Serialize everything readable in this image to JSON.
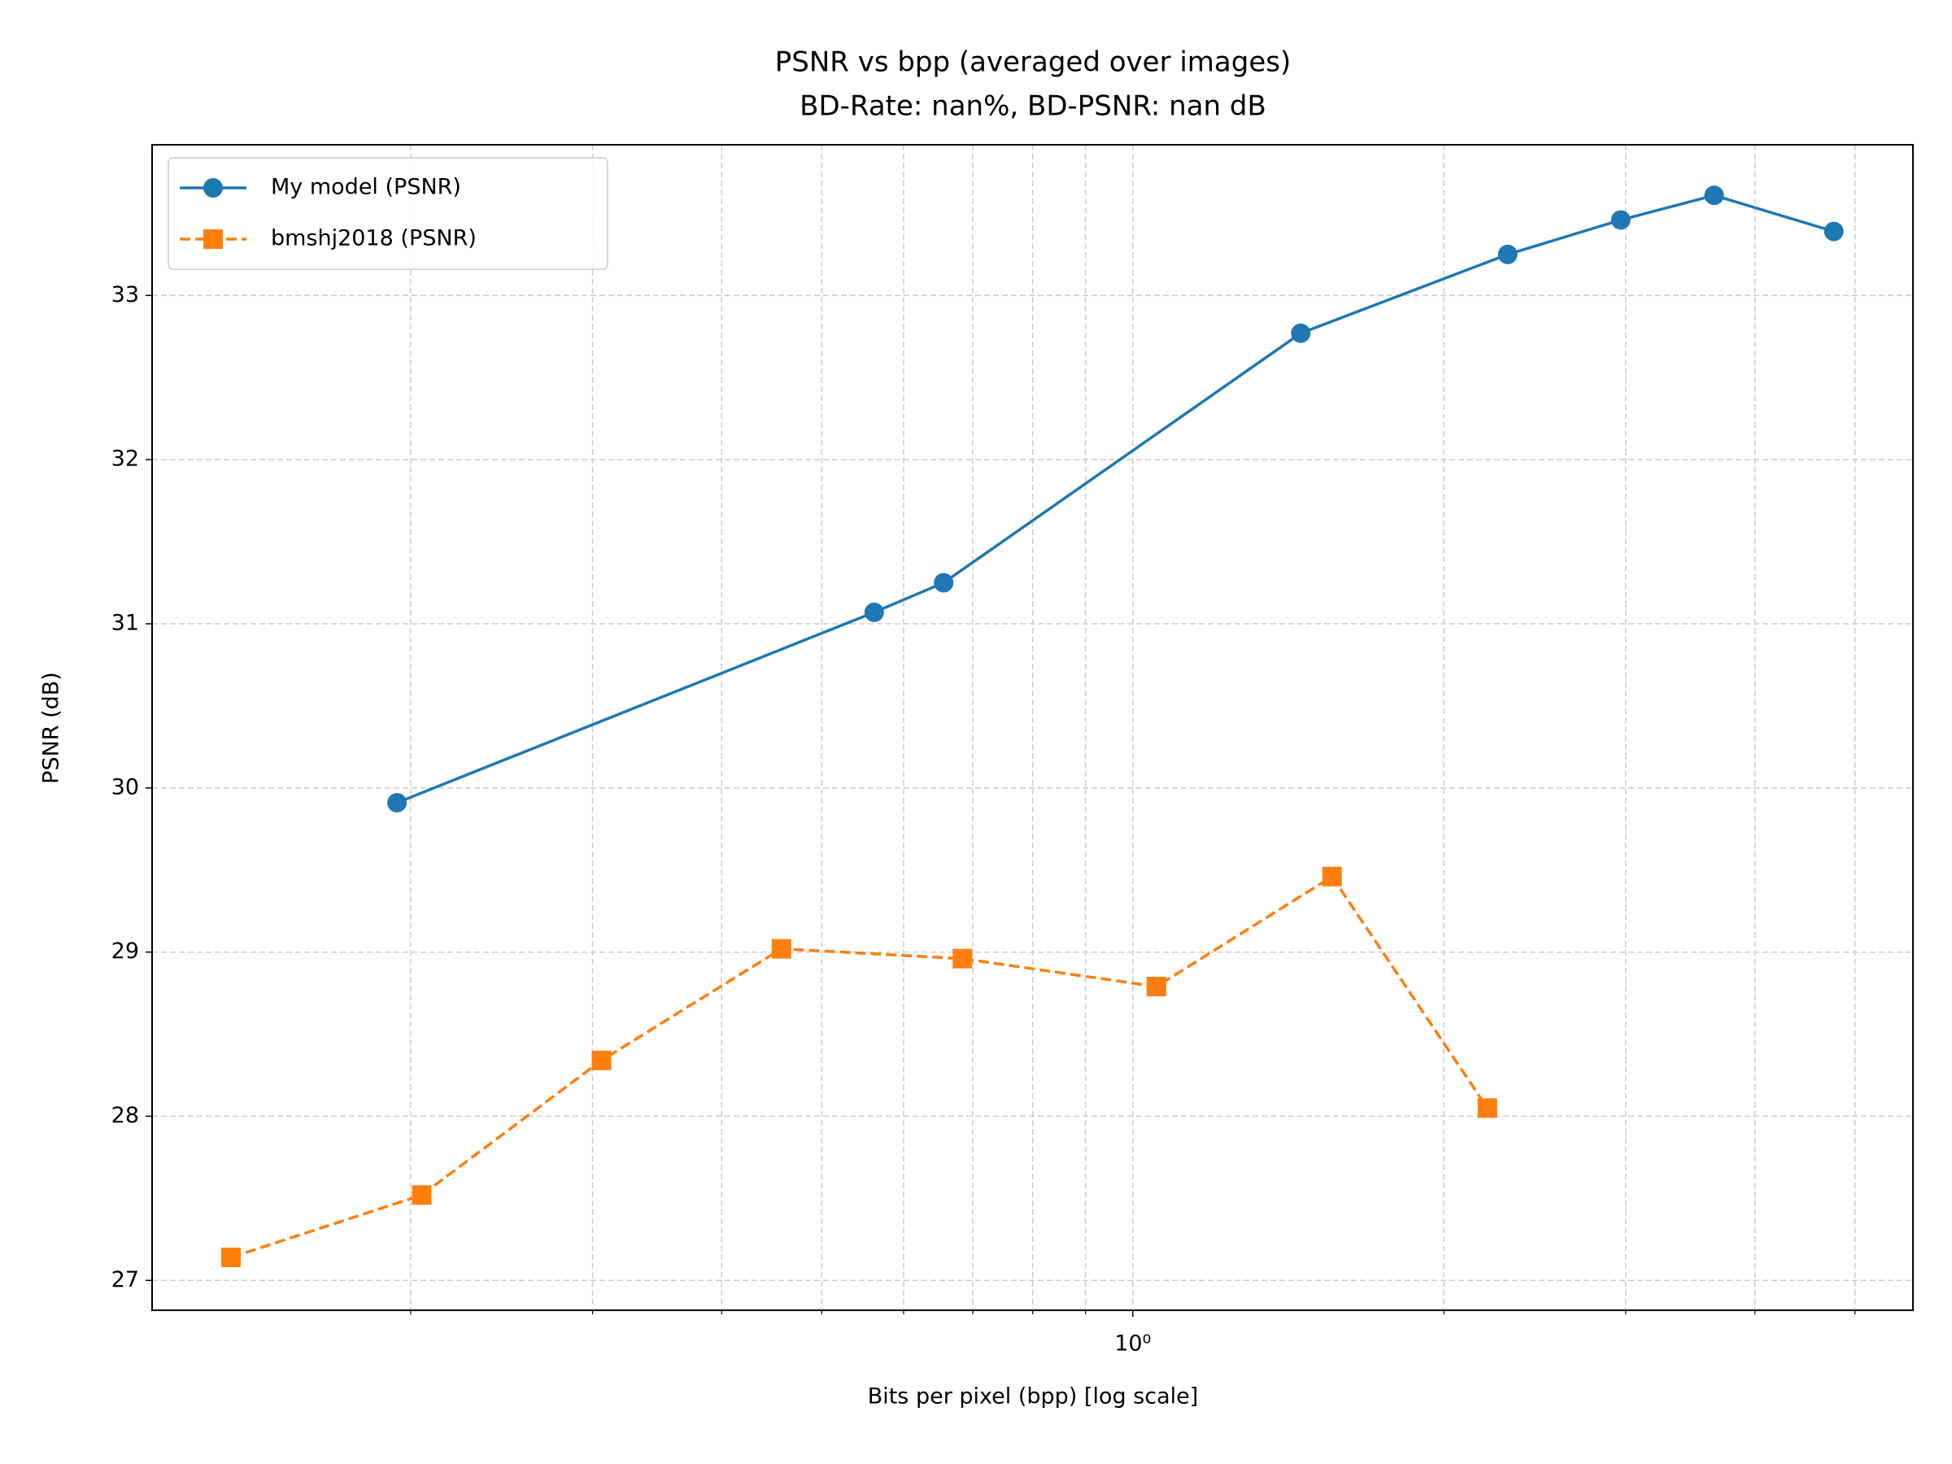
{
  "chart_data": {
    "type": "line",
    "title": "PSNR vs bpp (averaged over images)",
    "subtitle": "BD-Rate: nan%, BD-PSNR: nan dB",
    "x_label": "Bits per pixel (bpp) [log scale]",
    "y_label": "PSNR (dB)",
    "x_scale": "log",
    "grid": true,
    "legend": "upper left",
    "xlim": [
      0.1124,
      5.69
    ],
    "ylim": [
      26.818,
      33.918
    ],
    "xticks": [
      {
        "value": 1,
        "label": "10⁰"
      }
    ],
    "xminorticks": [
      0.2,
      0.3,
      0.4,
      0.5,
      0.6,
      0.7,
      0.8,
      0.9,
      2,
      3,
      4,
      5
    ],
    "yticks": [
      27,
      28,
      29,
      30,
      31,
      32,
      33
    ],
    "series": [
      {
        "name": "My model (PSNR)",
        "color": "#1f77b4",
        "marker": "circle",
        "dash": "solid",
        "x": [
          0.194,
          0.562,
          0.656,
          1.454,
          2.306,
          2.967,
          3.653,
          4.77
        ],
        "values": [
          29.91,
          31.07,
          31.25,
          32.77,
          33.25,
          33.46,
          33.61,
          33.39
        ]
      },
      {
        "name": "bmshj2018 (PSNR)",
        "color": "#ff7f0e",
        "marker": "square",
        "dash": "dashed",
        "x": [
          0.134,
          0.205,
          0.306,
          0.457,
          0.684,
          1.054,
          1.559,
          2.204
        ],
        "values": [
          27.14,
          27.52,
          28.34,
          29.02,
          28.96,
          28.79,
          29.46,
          28.05
        ]
      }
    ]
  }
}
